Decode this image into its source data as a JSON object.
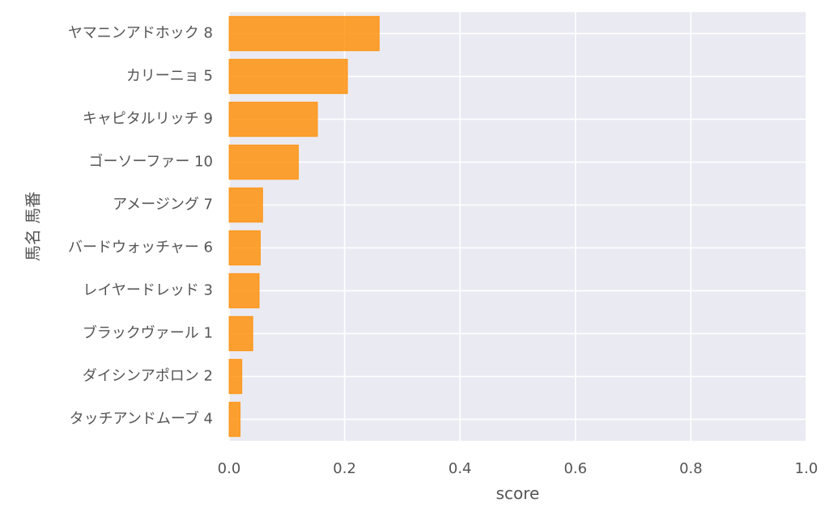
{
  "chart_data": {
    "type": "bar",
    "orientation": "horizontal",
    "xlabel": "score",
    "ylabel": "馬名 馬番",
    "xlim": [
      0,
      1
    ],
    "xticks": [
      "0.0",
      "0.2",
      "0.4",
      "0.6",
      "0.8",
      "1.0"
    ],
    "categories": [
      "ヤマニンアドホック 8",
      "カリーニョ 5",
      "キャピタルリッチ 9",
      "ゴーソーファー 10",
      "アメージング 7",
      "バードウォッチャー 6",
      "レイヤードレッド 3",
      "ブラックヴァール 1",
      "ダイシンアポロン 2",
      "タッチアンドムーブ 4"
    ],
    "values": [
      0.26,
      0.205,
      0.153,
      0.12,
      0.058,
      0.054,
      0.052,
      0.041,
      0.022,
      0.019
    ],
    "grid": true,
    "legend": "none",
    "colors": {
      "bar": "#ff8c00",
      "background": "#eaeaf2",
      "grid": "#ffffff",
      "text": "#555555"
    }
  }
}
